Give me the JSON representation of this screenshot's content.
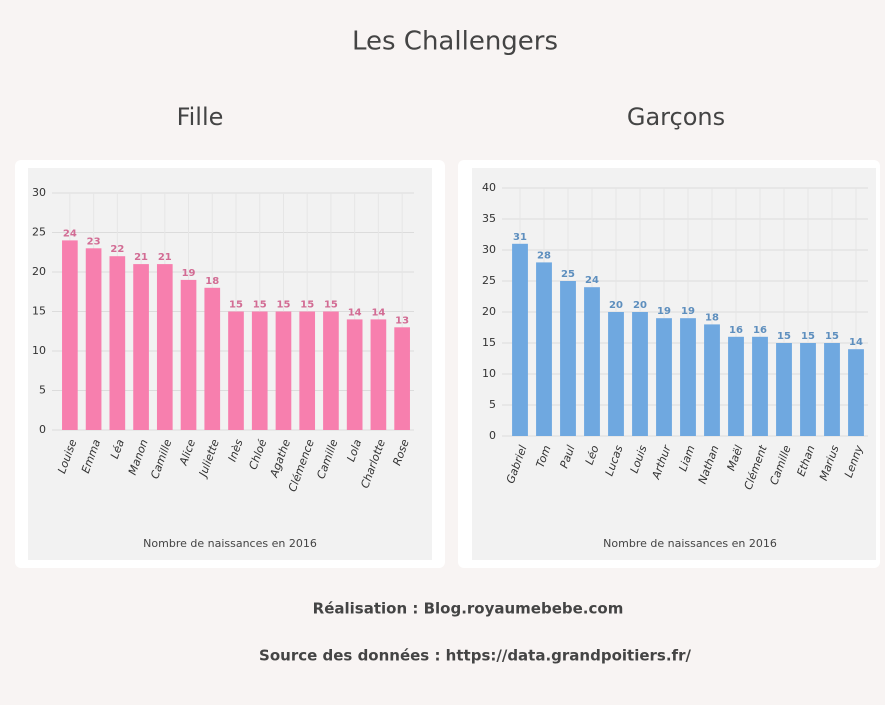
{
  "title": "Les Challengers",
  "footer": [
    "Réalisation : Blog.royaumebebe.com",
    "Source des données : https://data.grandpoitiers.fr/"
  ],
  "chart_data": [
    {
      "type": "bar",
      "title": "Fille",
      "x_label": "Nombre de naissances en 2016",
      "categories": [
        "Louise",
        "Emma",
        "Léa",
        "Manon",
        "Camille",
        "Alice",
        "Juliette",
        "Inès",
        "Chloé",
        "Agathe",
        "Clémence",
        "Camille",
        "Lola",
        "Charlotte",
        "Rose"
      ],
      "values": [
        24,
        23,
        22,
        21,
        21,
        19,
        18,
        15,
        15,
        15,
        15,
        15,
        14,
        14,
        13
      ],
      "color": "#f77fae",
      "ylim": [
        0,
        30
      ],
      "yticks": [
        0,
        5,
        10,
        15,
        20,
        25,
        30
      ],
      "grid": true
    },
    {
      "type": "bar",
      "title": "Garçons",
      "x_label": "Nombre de naissances en 2016",
      "categories": [
        "Gabriel",
        "Tom",
        "Paul",
        "Léo",
        "Lucas",
        "Louis",
        "Arthur",
        "Liam",
        "Nathan",
        "Maël",
        "Clément",
        "Camille",
        "Ethan",
        "Marius",
        "Lenny"
      ],
      "values": [
        31,
        28,
        25,
        24,
        20,
        20,
        19,
        19,
        18,
        16,
        16,
        15,
        15,
        15,
        14
      ],
      "color": "#6fa8e0",
      "ylim": [
        0,
        40
      ],
      "yticks": [
        0,
        5,
        10,
        15,
        20,
        25,
        30,
        35,
        40
      ],
      "grid": true
    }
  ]
}
